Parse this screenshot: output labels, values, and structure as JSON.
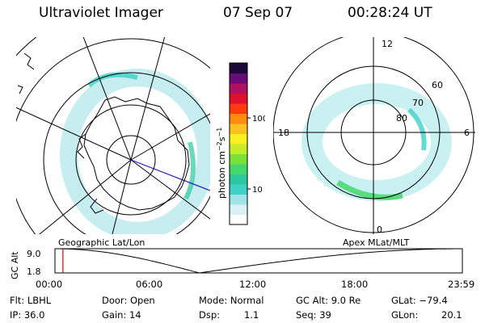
{
  "header": {
    "title": "Ultraviolet Imager",
    "date": "07 Sep 07",
    "time": "00:28:24 UT"
  },
  "left_panel": {
    "label": "Geographic Lat/Lon"
  },
  "right_panel": {
    "label": "Apex MLat/MLT",
    "mlt_labels": [
      "12",
      "18",
      "6",
      "0"
    ],
    "lat_labels": [
      "60",
      "70",
      "80"
    ]
  },
  "colorbar": {
    "unit_label": "photon cm",
    "unit_sup1": "−2",
    "unit_mid": "s",
    "unit_sup2": "−1",
    "scale": "log",
    "ticks": [
      "100",
      "10"
    ],
    "colors": [
      "#ffffff",
      "#d9f1f4",
      "#9fe3e6",
      "#3fd0c8",
      "#2cc8a0",
      "#44d86a",
      "#7be03a",
      "#c6ec2a",
      "#f8f020",
      "#ffc020",
      "#ff8a10",
      "#ff3a10",
      "#e0102a",
      "#b01060",
      "#6a0a78",
      "#1a0a3a"
    ]
  },
  "alt_chart": {
    "ylabel": "GC Alt",
    "ytick_top": "9.0",
    "ytick_bottom": "1.8",
    "xticks": [
      "00:00",
      "06:00",
      "12:00",
      "18:00",
      "23:59"
    ],
    "ylim": [
      1.8,
      9.0
    ],
    "current_time_hours": 0.47,
    "marker_color": "#e00000"
  },
  "info": {
    "flt": "Flt: LBHL",
    "ip": "IP: 36.0",
    "door": "Door: Open",
    "gain": "Gain: 14",
    "mode": "Mode: Normal",
    "dsp_label": "Dsp:",
    "dsp_value": "1.1",
    "gc_alt": "GC Alt: 9.0 Re",
    "seq": "Seq: 39",
    "glat": "GLat: −79.4",
    "glon_label": "GLon:",
    "glon_value": "20.1"
  }
}
